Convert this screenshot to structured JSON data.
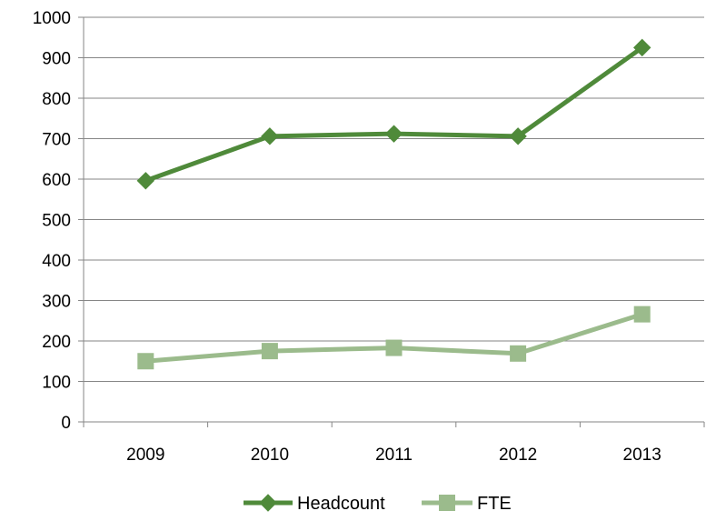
{
  "chart_data": {
    "type": "line",
    "categories": [
      "2009",
      "2010",
      "2011",
      "2012",
      "2013"
    ],
    "series": [
      {
        "name": "Headcount",
        "values": [
          596,
          706,
          712,
          706,
          925
        ],
        "color": "#4f8a3a",
        "marker": "diamond"
      },
      {
        "name": "FTE",
        "values": [
          150,
          175,
          183,
          169,
          266
        ],
        "color": "#9bbb8c",
        "marker": "square"
      }
    ],
    "ylim": [
      0,
      1000
    ],
    "yticks": [
      "0",
      "100",
      "200",
      "300",
      "400",
      "500",
      "600",
      "700",
      "800",
      "900",
      "1000"
    ],
    "grid": true,
    "legend": "bottom",
    "title": "",
    "xlabel": "",
    "ylabel": ""
  }
}
